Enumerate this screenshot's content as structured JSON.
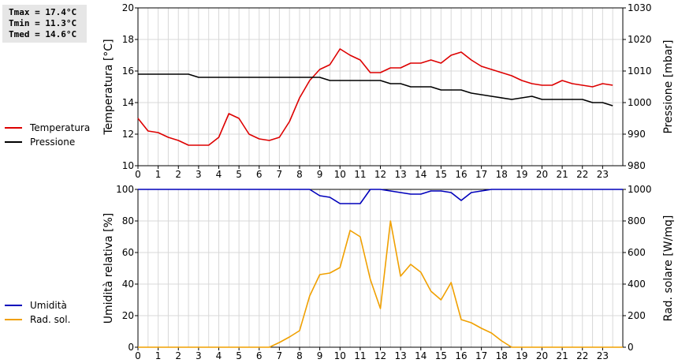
{
  "stats": {
    "tmax": "Tmax = 17.4°C",
    "tmin": "Tmin = 11.3°C",
    "tmed": "Tmed = 14.6°C"
  },
  "legend_top": [
    {
      "label": "Temperatura",
      "color": "#dd0000"
    },
    {
      "label": "Pressione",
      "color": "#000000"
    }
  ],
  "legend_bottom": [
    {
      "label": "Umidità",
      "color": "#0000bb"
    },
    {
      "label": "Rad. sol.",
      "color": "#f0a000"
    }
  ],
  "chart_data": [
    {
      "type": "line",
      "xlabel_ticks": [
        "0",
        "1",
        "2",
        "3",
        "4",
        "5",
        "6",
        "7",
        "8",
        "9",
        "10",
        "11",
        "12",
        "13",
        "14",
        "15",
        "16",
        "17",
        "18",
        "19",
        "20",
        "21",
        "22",
        "23"
      ],
      "xlim": [
        0,
        24
      ],
      "ylabel_left": "Temperatura [°C]",
      "ylim_left": [
        10,
        20
      ],
      "yticks_left": [
        "10",
        "12",
        "14",
        "16",
        "18",
        "20"
      ],
      "ylabel_right": "Pressione [mbar]",
      "ylim_right": [
        980,
        1030
      ],
      "yticks_right": [
        "980",
        "990",
        "1000",
        "1010",
        "1020",
        "1030"
      ],
      "grid": true,
      "series": [
        {
          "name": "Temperatura",
          "axis": "left",
          "color": "#dd0000",
          "x": [
            0,
            0.25,
            0.5,
            1,
            1.5,
            2,
            2.5,
            3,
            3.5,
            4,
            4.5,
            5,
            5.5,
            6,
            6.5,
            7,
            7.5,
            8,
            8.5,
            9,
            9.5,
            10,
            10.5,
            11,
            11.5,
            12,
            12.5,
            13,
            13.5,
            14,
            14.5,
            15,
            15.5,
            16,
            16.5,
            17,
            17.5,
            18,
            18.5,
            19,
            19.5,
            20,
            20.5,
            21,
            21.5,
            22,
            22.5,
            23,
            23.5
          ],
          "y": [
            13.0,
            12.6,
            12.2,
            12.1,
            11.8,
            11.6,
            11.3,
            11.3,
            11.3,
            11.8,
            13.3,
            13.0,
            12.0,
            11.7,
            11.6,
            11.8,
            12.8,
            14.3,
            15.4,
            16.1,
            16.4,
            17.4,
            17.0,
            16.7,
            15.9,
            15.9,
            16.2,
            16.2,
            16.5,
            16.5,
            16.7,
            16.5,
            17.0,
            17.2,
            16.7,
            16.3,
            16.1,
            15.9,
            15.7,
            15.4,
            15.2,
            15.1,
            15.1,
            15.4,
            15.2,
            15.1,
            15.0,
            15.2,
            15.1
          ]
        },
        {
          "name": "Pressione",
          "axis": "right",
          "color": "#000000",
          "x": [
            0,
            2.5,
            3,
            8.5,
            9,
            9.5,
            12,
            12.5,
            13,
            13.5,
            14.5,
            15,
            16,
            16.5,
            17.5,
            18.5,
            19.5,
            20,
            21.5,
            22,
            22.5,
            23,
            23.5
          ],
          "y": [
            1009,
            1009,
            1008,
            1008,
            1008,
            1007,
            1007,
            1006,
            1006,
            1005,
            1005,
            1004,
            1004,
            1003,
            1002,
            1001,
            1002,
            1001,
            1001,
            1001,
            1000,
            1000,
            999
          ]
        }
      ]
    },
    {
      "type": "line",
      "xlabel_ticks": [
        "0",
        "1",
        "2",
        "3",
        "4",
        "5",
        "6",
        "7",
        "8",
        "9",
        "10",
        "11",
        "12",
        "13",
        "14",
        "15",
        "16",
        "17",
        "18",
        "19",
        "20",
        "21",
        "22",
        "23"
      ],
      "xlim": [
        0,
        24
      ],
      "ylabel_left": "Umidità relativa [%]",
      "ylim_left": [
        0,
        100
      ],
      "yticks_left": [
        "0",
        "20",
        "40",
        "60",
        "80",
        "100"
      ],
      "ylabel_right": "Rad. solare [W/mq]",
      "ylim_right": [
        0,
        1000
      ],
      "yticks_right": [
        "0",
        "200",
        "400",
        "600",
        "800",
        "1000"
      ],
      "grid": true,
      "series": [
        {
          "name": "Umidità",
          "axis": "left",
          "color": "#0000bb",
          "x": [
            0,
            8.5,
            9,
            9.5,
            10,
            10.5,
            11,
            11.5,
            12,
            12.5,
            13,
            13.5,
            14,
            14.5,
            15,
            15.5,
            16,
            16.5,
            17,
            17.5,
            24
          ],
          "y": [
            100,
            100,
            96,
            95,
            91,
            91,
            91,
            100,
            100,
            99,
            98,
            97,
            97,
            99,
            99,
            98,
            93,
            98,
            99,
            100,
            100
          ]
        },
        {
          "name": "Rad. sol.",
          "axis": "right",
          "color": "#f0a000",
          "x": [
            0,
            6.5,
            7,
            7.5,
            8,
            8.5,
            9,
            9.5,
            10,
            10.5,
            11,
            11.5,
            12,
            12.5,
            13,
            13.5,
            14,
            14.5,
            15,
            15.5,
            16,
            16.5,
            17,
            17.5,
            18,
            18.5,
            24
          ],
          "y": [
            0,
            0,
            30,
            65,
            105,
            325,
            460,
            470,
            505,
            740,
            700,
            430,
            245,
            800,
            450,
            525,
            475,
            355,
            300,
            410,
            175,
            155,
            120,
            90,
            40,
            0,
            0
          ]
        }
      ]
    }
  ]
}
